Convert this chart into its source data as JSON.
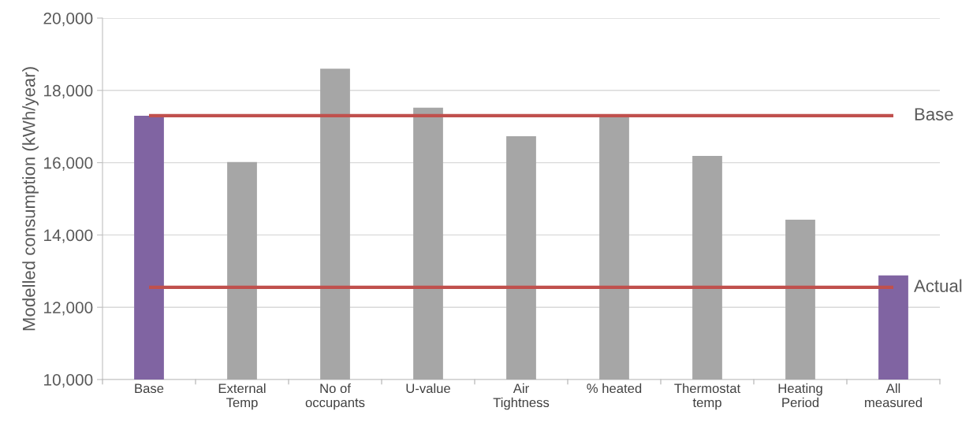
{
  "chart_data": {
    "type": "bar",
    "ylabel": "Modelled consumption (kWh/year)",
    "categories": [
      "Base",
      "External\nTemp",
      "No of\noccupants",
      "U-value",
      "Air\nTightness",
      "% heated",
      "Thermostat\ntemp",
      "Heating\nPeriod",
      "All\nmeasured"
    ],
    "values": [
      17300,
      16020,
      18600,
      17520,
      16730,
      17300,
      16190,
      14420,
      12880
    ],
    "colors": [
      "#8064a2",
      "#a6a6a6",
      "#a6a6a6",
      "#a6a6a6",
      "#a6a6a6",
      "#a6a6a6",
      "#a6a6a6",
      "#a6a6a6",
      "#8064a2"
    ],
    "ylim": [
      10000,
      20000
    ],
    "yticks": [
      {
        "value": 10000,
        "label": "10,000"
      },
      {
        "value": 12000,
        "label": "12,000"
      },
      {
        "value": 14000,
        "label": "14,000"
      },
      {
        "value": 16000,
        "label": "16,000"
      },
      {
        "value": 18000,
        "label": "18,000"
      },
      {
        "value": 20000,
        "label": "20,000"
      }
    ],
    "grid": "y",
    "ref_lines": [
      {
        "axis": "y",
        "value": 17300,
        "label": "Base",
        "color": "#c0504d"
      },
      {
        "axis": "y",
        "value": 12550,
        "label": "Actual",
        "color": "#c0504d"
      }
    ]
  }
}
